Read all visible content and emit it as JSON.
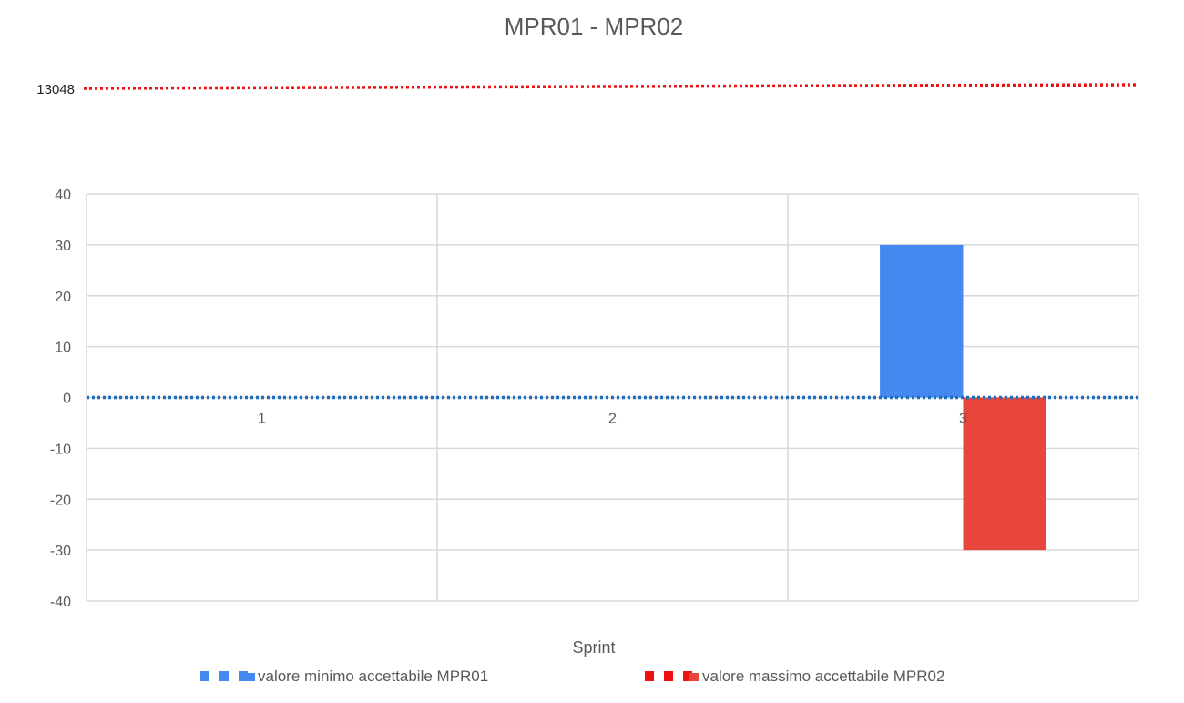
{
  "chart_data": {
    "type": "bar",
    "title": "MPR01 - MPR02",
    "xlabel": "Sprint",
    "ylabel": "",
    "categories": [
      "1",
      "2",
      "3"
    ],
    "ylim": [
      -40,
      40
    ],
    "yticks": [
      40,
      30,
      20,
      10,
      0,
      -10,
      -20,
      -30,
      -40
    ],
    "grid": true,
    "legend_position": "bottom",
    "series": [
      {
        "name": "valore minimo accettabile MPR01",
        "values": [
          0,
          0,
          30
        ],
        "color": "#4589f0"
      },
      {
        "name": "valore massimo accettabile MPR02",
        "values": [
          0,
          0,
          -30
        ],
        "color": "#e8453c"
      }
    ],
    "reference_lines": [
      {
        "label": "13048",
        "value": 13048,
        "color": "#ee1111",
        "style": "dotted",
        "off_scale": true
      },
      {
        "value": 0,
        "color": "#1f6fbf",
        "style": "dotted"
      }
    ],
    "legend_markers": [
      {
        "color": "#4589f0",
        "style": "dashed"
      },
      {
        "color": "#ee1111",
        "style": "dashed"
      }
    ]
  }
}
